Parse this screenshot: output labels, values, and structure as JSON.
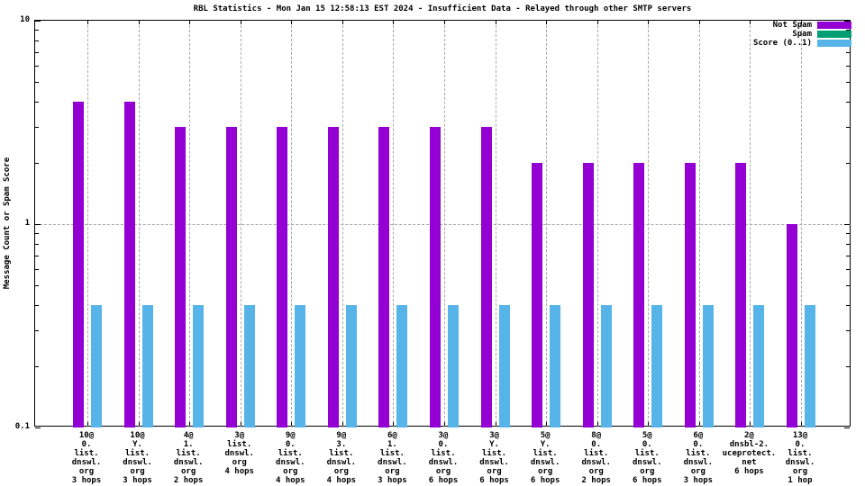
{
  "chart_data": {
    "type": "bar",
    "title": "RBL Statistics - Mon Jan 15 12:58:13 EST 2024 - Insufficient Data - Relayed through other SMTP servers",
    "ylabel": "Message Count or Spam Score",
    "y_scale": "log",
    "ylim": [
      0.1,
      10
    ],
    "y_major_ticks": [
      {
        "value": 10,
        "label": "10"
      },
      {
        "value": 1,
        "label": "1"
      },
      {
        "value": 0.1,
        "label": "0.1"
      }
    ],
    "grid": true,
    "legend_position": "top-right",
    "categories": [
      "10@\n0.\nlist.\ndnswl.\norg\n3 hops",
      "10@\nY.\nlist.\ndnswl.\norg\n3 hops",
      "4@\n1.\nlist.\ndnswl.\norg\n2 hops",
      "3@\nlist.\ndnswl.\norg\n4 hops",
      "9@\n0.\nlist.\ndnswl.\norg\n4 hops",
      "9@\n3.\nlist.\ndnswl.\norg\n4 hops",
      "6@\n1.\nlist.\ndnswl.\norg\n3 hops",
      "3@\n0.\nlist.\ndnswl.\norg\n6 hops",
      "3@\nY.\nlist.\ndnswl.\norg\n6 hops",
      "5@\nY.\nlist.\ndnswl.\norg\n6 hops",
      "8@\n0.\nlist.\ndnswl.\norg\n2 hops",
      "5@\n0.\nlist.\ndnswl.\norg\n6 hops",
      "6@\n0.\nlist.\ndnswl.\norg\n3 hops",
      "2@\ndnsbl-2.\nuceprotect.\nnet\n6 hops",
      "13@\n0.\nlist.\ndnswl.\norg\n1 hop"
    ],
    "series": [
      {
        "name": "Not Spam",
        "color": "#9400d3",
        "values": [
          4,
          4,
          3,
          3,
          3,
          3,
          3,
          3,
          3,
          2,
          2,
          2,
          2,
          2,
          1
        ]
      },
      {
        "name": "Spam",
        "color": "#009e73",
        "values": [
          0,
          0,
          0,
          0,
          0,
          0,
          0,
          0,
          0,
          0,
          0,
          0,
          0,
          0,
          0
        ]
      },
      {
        "name": "Score (0..1)",
        "color": "#56b4e9",
        "values": [
          0.4,
          0.4,
          0.4,
          0.4,
          0.4,
          0.4,
          0.4,
          0.4,
          0.4,
          0.4,
          0.4,
          0.4,
          0.4,
          0.4,
          0.4
        ]
      }
    ]
  }
}
